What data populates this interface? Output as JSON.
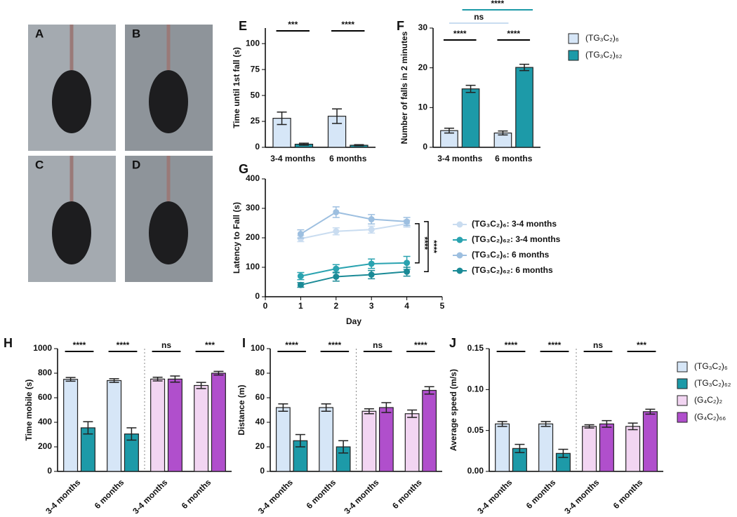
{
  "photo_panels": [
    "A",
    "B",
    "C",
    "D"
  ],
  "chart_data": [
    {
      "type": "bar",
      "panel": "E",
      "ylabel": "Time until 1st fall (s)",
      "categories": [
        "3-4 months",
        "6 months"
      ],
      "series": [
        {
          "name": "(TG₃C₂)₆",
          "color": "#d6e6f7",
          "values": [
            28,
            30
          ],
          "errors": [
            6,
            7
          ]
        },
        {
          "name": "(TG₃C₂)₆₂",
          "color": "#1d9aa8",
          "values": [
            3,
            2
          ],
          "errors": [
            1,
            0.5
          ]
        }
      ],
      "ylim": [
        0,
        115
      ],
      "yticks": [
        0,
        25,
        50,
        75,
        100
      ],
      "significance": [
        "***",
        "****"
      ]
    },
    {
      "type": "bar",
      "panel": "F",
      "ylabel": "Number of falls in 2 minutes",
      "categories": [
        "3-4 months",
        "6 months"
      ],
      "series": [
        {
          "name": "(TG₃C₂)₆",
          "color": "#d6e6f7",
          "values": [
            4.2,
            3.6
          ],
          "errors": [
            0.6,
            0.5
          ]
        },
        {
          "name": "(TG₃C₂)₆₂",
          "color": "#1d9aa8",
          "values": [
            14.7,
            20.1
          ],
          "errors": [
            0.9,
            0.8
          ]
        }
      ],
      "ylim": [
        0,
        30
      ],
      "yticks": [
        0,
        10,
        20,
        30
      ],
      "significance": [
        "****",
        "****",
        "ns",
        "****"
      ],
      "legend": true
    },
    {
      "type": "line",
      "panel": "G",
      "ylabel": "Latency to  Fall (s)",
      "xlabel": "Day",
      "x": [
        1,
        2,
        3,
        4
      ],
      "series": [
        {
          "name": "(TG₃C₂)₆: 3-4 months",
          "color": "#c9dcf0",
          "values": [
            197,
            222,
            228,
            248
          ],
          "errors": [
            10,
            12,
            12,
            12
          ]
        },
        {
          "name": "(TG₃C₂)₆₂: 3-4 months",
          "color": "#2aa3b0",
          "values": [
            70,
            95,
            112,
            115
          ],
          "errors": [
            12,
            14,
            16,
            22
          ]
        },
        {
          "name": "(TG₃C₂)₆: 6 months",
          "color": "#9dbfe0",
          "values": [
            213,
            287,
            263,
            255
          ],
          "errors": [
            14,
            18,
            16,
            14
          ]
        },
        {
          "name": "(TG₃C₂)₆₂: 6 months",
          "color": "#1a8a96",
          "values": [
            40,
            68,
            75,
            85
          ],
          "errors": [
            8,
            15,
            14,
            15
          ]
        }
      ],
      "xlim": [
        0,
        5
      ],
      "xticks": [
        0,
        1,
        2,
        3,
        4,
        5
      ],
      "ylim": [
        0,
        400
      ],
      "yticks": [
        0,
        100,
        200,
        300,
        400
      ],
      "significance": [
        "****",
        "****"
      ],
      "legend": true
    },
    {
      "type": "bar",
      "panel": "H",
      "ylabel": "Time mobile (s)",
      "categories": [
        "3-4 months",
        "6 months",
        "3-4 months",
        "6 months"
      ],
      "series": [
        {
          "name": "(TG₃C₂)₆",
          "color": "#d6e6f7",
          "values": [
            750,
            740,
            null,
            null
          ],
          "errors": [
            15,
            15,
            null,
            null
          ]
        },
        {
          "name": "(TG₃C₂)₆₂",
          "color": "#1d9aa8",
          "values": [
            355,
            305,
            null,
            null
          ],
          "errors": [
            50,
            50,
            null,
            null
          ]
        },
        {
          "name": "(G₄C₂)₂",
          "color": "#f2d5f2",
          "values": [
            null,
            null,
            752,
            700
          ],
          "errors": [
            null,
            null,
            15,
            25
          ]
        },
        {
          "name": "(G₄C₂)₆₆",
          "color": "#b04fcc",
          "values": [
            null,
            null,
            752,
            800
          ],
          "errors": [
            null,
            null,
            25,
            15
          ]
        }
      ],
      "ylim": [
        0,
        1000
      ],
      "yticks": [
        0,
        200,
        400,
        600,
        800,
        1000
      ],
      "significance": [
        "****",
        "****",
        "ns",
        "***"
      ]
    },
    {
      "type": "bar",
      "panel": "I",
      "ylabel": "Distance (m)",
      "categories": [
        "3-4 months",
        "6 months",
        "3-4 months",
        "6 months"
      ],
      "series": [
        {
          "name": "(TG₃C₂)₆",
          "color": "#d6e6f7",
          "values": [
            52,
            52,
            null,
            null
          ],
          "errors": [
            3,
            3,
            null,
            null
          ]
        },
        {
          "name": "(TG₃C₂)₆₂",
          "color": "#1d9aa8",
          "values": [
            25,
            20,
            null,
            null
          ],
          "errors": [
            5,
            5,
            null,
            null
          ]
        },
        {
          "name": "(G₄C₂)₂",
          "color": "#f2d5f2",
          "values": [
            null,
            null,
            49,
            47
          ],
          "errors": [
            null,
            null,
            2,
            3
          ]
        },
        {
          "name": "(G₄C₂)₆₆",
          "color": "#b04fcc",
          "values": [
            null,
            null,
            52,
            66
          ],
          "errors": [
            null,
            null,
            4,
            3
          ]
        }
      ],
      "ylim": [
        0,
        100
      ],
      "yticks": [
        0,
        20,
        40,
        60,
        80,
        100
      ],
      "significance": [
        "****",
        "****",
        "ns",
        "****"
      ]
    },
    {
      "type": "bar",
      "panel": "J",
      "ylabel": "Average speed (m/s)",
      "categories": [
        "3-4 months",
        "6 months",
        "3-4 months",
        "6 months"
      ],
      "series": [
        {
          "name": "(TG₃C₂)₆",
          "color": "#d6e6f7",
          "values": [
            0.058,
            0.058,
            null,
            null
          ],
          "errors": [
            0.003,
            0.003,
            null,
            null
          ]
        },
        {
          "name": "(TG₃C₂)₆₂",
          "color": "#1d9aa8",
          "values": [
            0.028,
            0.022,
            null,
            null
          ],
          "errors": [
            0.005,
            0.005,
            null,
            null
          ]
        },
        {
          "name": "(G₄C₂)₂",
          "color": "#f2d5f2",
          "values": [
            null,
            null,
            0.055,
            0.055
          ],
          "errors": [
            null,
            null,
            0.002,
            0.004
          ]
        },
        {
          "name": "(G₄C₂)₆₆",
          "color": "#b04fcc",
          "values": [
            null,
            null,
            0.058,
            0.073
          ],
          "errors": [
            null,
            null,
            0.004,
            0.003
          ]
        }
      ],
      "ylim": [
        0,
        0.15
      ],
      "yticks": [
        {
          "value": 0,
          "label": "0.00"
        },
        {
          "value": 0.05,
          "label": "0.05"
        },
        {
          "value": 0.1,
          "label": "0.10"
        },
        {
          "value": 0.15,
          "label": "0.15"
        }
      ],
      "significance": [
        "****",
        "****",
        "ns",
        "***"
      ],
      "legend": true
    }
  ]
}
